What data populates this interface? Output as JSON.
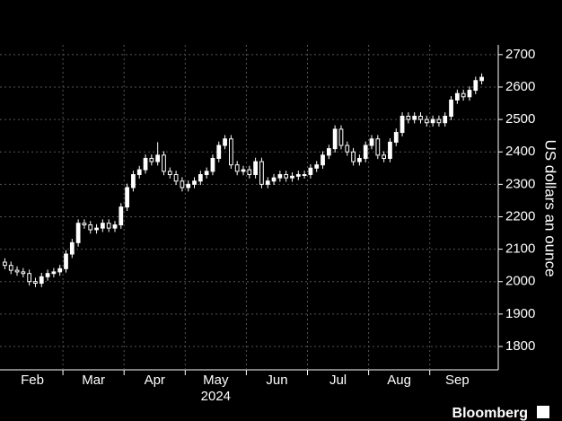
{
  "chart_data": {
    "type": "candlestick",
    "y_label": "US dollars an ounce",
    "year_label": "2024",
    "source": "Bloomberg",
    "up_color": "#ffffff",
    "down_color": "#000000",
    "wick_color": "#ffffff",
    "ylim": [
      1728,
      2730
    ],
    "yticks": [
      1800,
      1900,
      2000,
      2100,
      2200,
      2300,
      2400,
      2500,
      2600,
      2700
    ],
    "grid": true,
    "categories": [
      "Feb",
      null,
      null,
      null,
      null,
      null,
      null,
      null,
      null,
      null,
      "Mar",
      null,
      null,
      null,
      null,
      null,
      null,
      null,
      null,
      null,
      "Apr",
      null,
      null,
      null,
      null,
      null,
      null,
      null,
      null,
      null,
      "May",
      null,
      null,
      null,
      null,
      null,
      null,
      null,
      null,
      null,
      "Jun",
      null,
      null,
      null,
      null,
      null,
      null,
      null,
      null,
      null,
      "Jul",
      null,
      null,
      null,
      null,
      null,
      null,
      null,
      null,
      null,
      "Aug",
      null,
      null,
      null,
      null,
      null,
      null,
      null,
      null,
      null,
      "Sep",
      null,
      null,
      null,
      null,
      null,
      null,
      null,
      null
    ],
    "open": [
      2060,
      2050,
      2035,
      2030,
      2025,
      2000,
      1995,
      2015,
      2025,
      2030,
      2040,
      2085,
      2120,
      2180,
      2175,
      2160,
      2165,
      2180,
      2165,
      2175,
      2230,
      2290,
      2330,
      2345,
      2380,
      2370,
      2390,
      2340,
      2330,
      2310,
      2290,
      2300,
      2310,
      2330,
      2340,
      2380,
      2420,
      2440,
      2360,
      2340,
      2345,
      2330,
      2370,
      2300,
      2310,
      2320,
      2330,
      2320,
      2325,
      2330,
      2330,
      2350,
      2360,
      2390,
      2410,
      2470,
      2420,
      2400,
      2370,
      2380,
      2420,
      2440,
      2390,
      2380,
      2430,
      2460,
      2510,
      2500,
      2510,
      2500,
      2490,
      2500,
      2490,
      2510,
      2560,
      2580,
      2570,
      2590,
      2620
    ],
    "high": [
      2072,
      2062,
      2047,
      2042,
      2037,
      2012,
      2027,
      2037,
      2042,
      2052,
      2097,
      2132,
      2192,
      2192,
      2187,
      2177,
      2192,
      2192,
      2187,
      2242,
      2302,
      2342,
      2357,
      2392,
      2392,
      2430,
      2402,
      2352,
      2342,
      2322,
      2312,
      2322,
      2342,
      2352,
      2392,
      2432,
      2452,
      2452,
      2372,
      2357,
      2357,
      2382,
      2382,
      2322,
      2332,
      2342,
      2342,
      2337,
      2342,
      2342,
      2362,
      2372,
      2402,
      2422,
      2482,
      2482,
      2432,
      2412,
      2392,
      2432,
      2452,
      2452,
      2402,
      2442,
      2472,
      2522,
      2522,
      2522,
      2522,
      2512,
      2512,
      2512,
      2522,
      2572,
      2592,
      2592,
      2602,
      2632,
      2642
    ],
    "low": [
      2038,
      2023,
      2018,
      2013,
      1988,
      1983,
      1983,
      2003,
      2013,
      2018,
      2028,
      2073,
      2108,
      2163,
      2148,
      2148,
      2153,
      2153,
      2153,
      2163,
      2218,
      2278,
      2318,
      2333,
      2358,
      2358,
      2328,
      2318,
      2298,
      2278,
      2278,
      2288,
      2298,
      2318,
      2328,
      2368,
      2408,
      2348,
      2328,
      2328,
      2318,
      2318,
      2288,
      2288,
      2298,
      2308,
      2308,
      2308,
      2313,
      2318,
      2318,
      2338,
      2348,
      2378,
      2398,
      2408,
      2388,
      2358,
      2358,
      2368,
      2408,
      2378,
      2368,
      2368,
      2418,
      2448,
      2488,
      2488,
      2488,
      2478,
      2478,
      2478,
      2478,
      2498,
      2548,
      2558,
      2558,
      2578,
      2608
    ],
    "close": [
      2050,
      2035,
      2030,
      2025,
      2000,
      1995,
      2015,
      2025,
      2030,
      2040,
      2085,
      2120,
      2180,
      2175,
      2160,
      2165,
      2180,
      2165,
      2175,
      2230,
      2290,
      2330,
      2345,
      2380,
      2370,
      2390,
      2340,
      2330,
      2310,
      2290,
      2300,
      2310,
      2330,
      2340,
      2380,
      2420,
      2440,
      2360,
      2340,
      2345,
      2330,
      2370,
      2300,
      2310,
      2320,
      2330,
      2320,
      2325,
      2330,
      2330,
      2350,
      2360,
      2390,
      2410,
      2470,
      2420,
      2400,
      2370,
      2380,
      2420,
      2440,
      2390,
      2380,
      2430,
      2460,
      2510,
      2500,
      2510,
      2500,
      2490,
      2500,
      2490,
      2510,
      2560,
      2580,
      2570,
      2590,
      2620,
      2630
    ]
  }
}
